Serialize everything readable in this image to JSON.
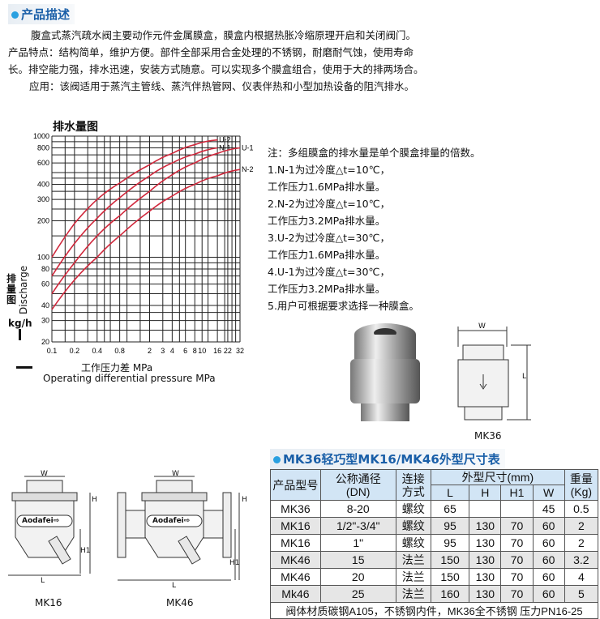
{
  "section_title": "产品描述",
  "description": [
    "腹盒式蒸汽疏水阀主要动作元件金属膜盒，膜盒内根据热胀冷缩原理开启和关闭阀门。",
    "产品特点：结构简单，维护方便。部件全部采用合金处理的不锈钢，耐磨耐气蚀，使用寿命",
    "长。排空能力强，排水迅速，安装方式随意。可以实现多个膜盒组合，使用于大的排两场合。",
    "应用：该阀适用于蒸汽主管线、蒸汽伴热管网、仪表伴热和小型加热设备的阻汽排水。"
  ],
  "chart_data": {
    "type": "line",
    "title": "排水量图",
    "xlabel": "工作压力差 MPa",
    "xlabel_en": "Operating differential pressure MPa",
    "ylabel": "排量图",
    "ylabel_en": "Discharge",
    "yunit": "kg/h",
    "xscale": "log",
    "yscale": "log",
    "xlim": [
      0.1,
      32
    ],
    "ylim": [
      20,
      1000
    ],
    "grid": true,
    "xticks": [
      "0.1",
      "0.2",
      "0.4",
      "0.8",
      "2",
      "3",
      "4",
      "6",
      "8",
      "10",
      "16",
      "22",
      "32"
    ],
    "xtick_values": [
      0.1,
      0.2,
      0.4,
      0.8,
      2,
      3,
      4,
      6,
      8,
      10,
      16,
      22,
      32
    ],
    "yticks": [
      "20",
      "30",
      "40",
      "60",
      "80",
      "100",
      "200",
      "300",
      "400",
      "600",
      "800",
      "1000"
    ],
    "ytick_values": [
      20,
      30,
      40,
      60,
      80,
      100,
      200,
      300,
      400,
      600,
      800,
      1000
    ],
    "color": "#d0283c",
    "series": [
      {
        "name": "U-2",
        "x": [
          0.1,
          0.2,
          0.4,
          0.8,
          2,
          4,
          8,
          16
        ],
        "y": [
          100,
          190,
          300,
          410,
          580,
          720,
          850,
          930
        ]
      },
      {
        "name": "N-1",
        "x": [
          0.1,
          0.2,
          0.4,
          0.8,
          2,
          4,
          8,
          16
        ],
        "y": [
          70,
          130,
          210,
          310,
          470,
          600,
          710,
          800
        ]
      },
      {
        "name": "U-1",
        "x": [
          0.1,
          0.2,
          0.4,
          0.8,
          2,
          4,
          8,
          16,
          32
        ],
        "y": [
          50,
          90,
          150,
          220,
          350,
          480,
          600,
          720,
          800
        ]
      },
      {
        "name": "N-2",
        "x": [
          0.1,
          0.2,
          0.4,
          0.8,
          2,
          4,
          8,
          16,
          32
        ],
        "y": [
          37,
          65,
          100,
          150,
          240,
          320,
          400,
          470,
          530
        ]
      }
    ]
  },
  "notes": [
    "注：多组膜盒的排水量是单个膜盒排量的倍数。",
    "1.N-1为过冷度△t=10℃，",
    "工作压力1.6MPa排水量。",
    "2.N-2为过冷度△t=10℃，",
    "工作压力3.2MPa排水量。",
    "3.U-2为过冷度△t=30℃，",
    "工作压力1.6MPa排水量。",
    "4.U-1为过冷度△t=30℃，",
    "工作压力3.2MPa排水量。",
    "5.用户可根据要求选择一种膜盒。"
  ],
  "drawings": {
    "mk36": "MK36",
    "mk16": "MK16",
    "mk46": "MK46",
    "brand": "Aodafei⇨",
    "dims": {
      "w": "W",
      "h": "H",
      "h1": "H1",
      "l": "L"
    }
  },
  "table": {
    "title": "MK36轻巧型MK16/MK46外型尺寸表",
    "headers": {
      "model": "产品型号",
      "dn": "公称通径",
      "dn2": "(DN)",
      "conn": "连接",
      "conn2": "方式",
      "dims": "外型尺寸(mm)",
      "weight": "重量",
      "weight2": "(Kg)",
      "L": "L",
      "H": "H",
      "H1": "H1",
      "W": "W"
    },
    "rows": [
      [
        "MK36",
        "8-20",
        "螺纹",
        "65",
        "",
        "",
        "45",
        "0.5"
      ],
      [
        "MK16",
        "1/2\"-3/4\"",
        "螺纹",
        "95",
        "130",
        "70",
        "60",
        "2"
      ],
      [
        "MK16",
        "1\"",
        "螺纹",
        "95",
        "130",
        "70",
        "60",
        "2"
      ],
      [
        "MK46",
        "15",
        "法兰",
        "150",
        "130",
        "70",
        "60",
        "3.2"
      ],
      [
        "MK46",
        "20",
        "法兰",
        "150",
        "130",
        "70",
        "60",
        "4"
      ],
      [
        "Mk46",
        "25",
        "法兰",
        "160",
        "130",
        "70",
        "60",
        "5"
      ]
    ],
    "footer": "阀体材质碳钢A105，不锈钢内件，MK36全不锈钢 压力PN16-25"
  }
}
